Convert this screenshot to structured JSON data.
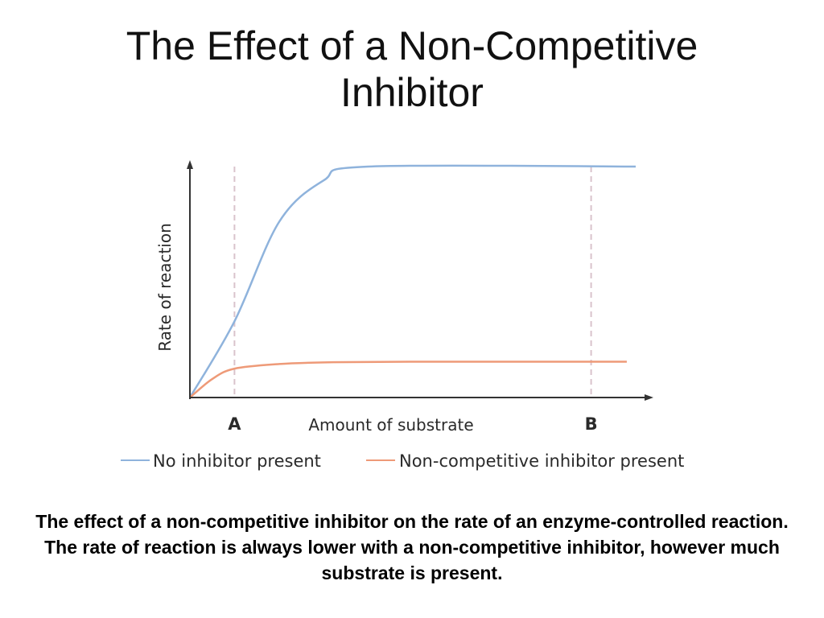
{
  "slide": {
    "title_line1": "The Effect of a Non-Competitive",
    "title_line2": "Inhibitor",
    "caption": "The effect of a non-competitive inhibitor on the rate of an enzyme-controlled reaction.  The rate of reaction is always lower with a non-competitive inhibitor, however much substrate is present."
  },
  "chart_data": {
    "type": "line",
    "title": "",
    "xlabel": "Amount of substrate",
    "ylabel": "Rate of reaction",
    "x_ticks": [
      {
        "label": "A",
        "x": 1
      },
      {
        "label": "B",
        "x": 9
      }
    ],
    "xlim": [
      0,
      10
    ],
    "ylim": [
      0,
      10
    ],
    "grid": false,
    "legend_position": "bottom",
    "series": [
      {
        "name": "No inhibitor present",
        "color": "#8fb3dc",
        "points": [
          [
            0,
            0
          ],
          [
            1,
            3.3
          ],
          [
            2,
            7.6
          ],
          [
            3,
            9.4
          ],
          [
            4,
            10
          ],
          [
            10,
            10
          ]
        ]
      },
      {
        "name": "Non-competitive inhibitor present",
        "color": "#ee9a78",
        "points": [
          [
            0,
            0
          ],
          [
            0.5,
            0.8
          ],
          [
            1,
            1.25
          ],
          [
            2,
            1.45
          ],
          [
            3,
            1.52
          ],
          [
            5,
            1.55
          ],
          [
            9.8,
            1.55
          ]
        ]
      }
    ],
    "reference_lines": [
      {
        "x": 1,
        "color": "#d9c3cc",
        "style": "dashed"
      },
      {
        "x": 9,
        "color": "#d9c3cc",
        "style": "dashed"
      }
    ]
  }
}
